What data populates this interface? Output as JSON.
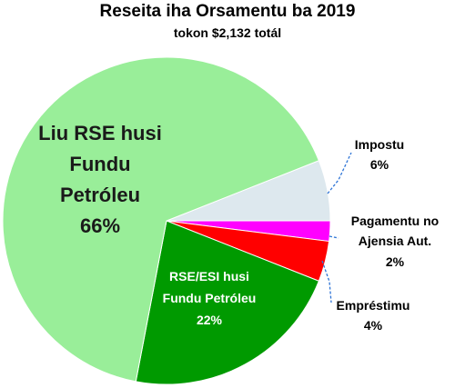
{
  "chart_data": {
    "type": "pie",
    "title": "Reseita iha Orsamentu ba 2019",
    "subtitle": "tokon $2,132 totál",
    "categories": [
      "Impostu",
      "Pagamentu no Ajensia Aut.",
      "Empréstimu",
      "RSE/ESI husi Fundu Petróleu",
      "Liu RSE husi Fundu Petróleu"
    ],
    "values": [
      6,
      2,
      4,
      22,
      66
    ],
    "value_labels": [
      "6%",
      "2%",
      "4%",
      "22%",
      "66%"
    ],
    "colors": [
      "#dde8ee",
      "#ff00ff",
      "#ff0000",
      "#009a00",
      "#99ee99"
    ]
  }
}
